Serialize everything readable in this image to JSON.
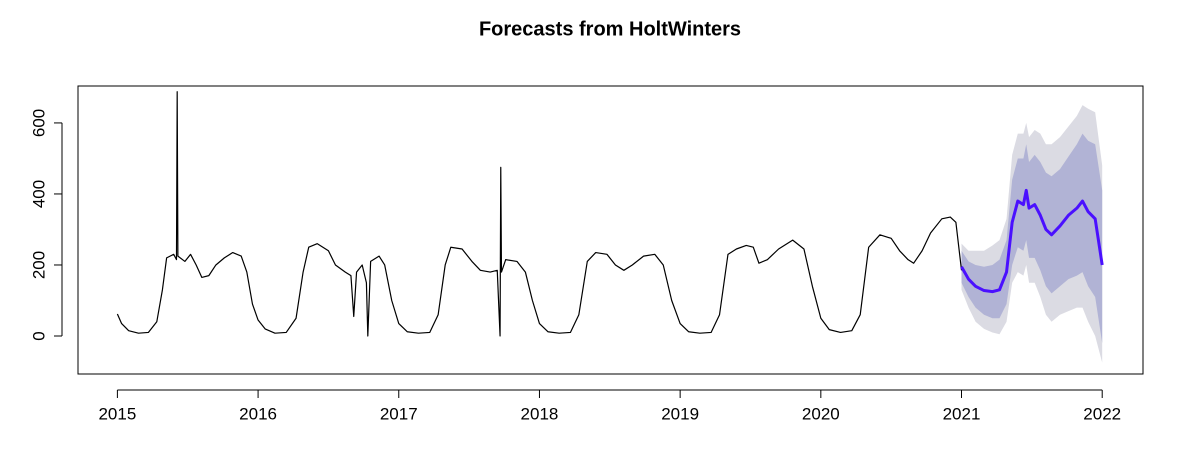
{
  "chart_data": {
    "type": "line",
    "title": "Forecasts from HoltWinters",
    "xlim": [
      2014.72,
      2022.29
    ],
    "ylim": [
      -107,
      704
    ],
    "xticks": [
      2015,
      2016,
      2017,
      2018,
      2019,
      2020,
      2021,
      2022
    ],
    "yticks": [
      0,
      200,
      400,
      600
    ],
    "bands": [
      {
        "color": "#dbdbe3",
        "x": [
          2021.0,
          2021.05,
          2021.1,
          2021.16,
          2021.22,
          2021.27,
          2021.32,
          2021.36,
          2021.4,
          2021.44,
          2021.46,
          2021.48,
          2021.52,
          2021.56,
          2021.6,
          2021.64,
          2021.7,
          2021.76,
          2021.82,
          2021.86,
          2021.9,
          2021.95,
          2022.0
        ],
        "lower": [
          130,
          80,
          40,
          20,
          10,
          5,
          40,
          150,
          180,
          170,
          200,
          150,
          150,
          110,
          60,
          40,
          60,
          70,
          80,
          80,
          40,
          0,
          -75
        ],
        "upper": [
          260,
          240,
          240,
          240,
          255,
          270,
          330,
          510,
          570,
          570,
          600,
          560,
          580,
          570,
          540,
          540,
          560,
          590,
          620,
          650,
          640,
          630,
          480
        ]
      },
      {
        "color": "#b1b3d5",
        "x": [
          2021.0,
          2021.05,
          2021.1,
          2021.16,
          2021.22,
          2021.27,
          2021.32,
          2021.36,
          2021.4,
          2021.44,
          2021.46,
          2021.48,
          2021.52,
          2021.56,
          2021.6,
          2021.64,
          2021.7,
          2021.76,
          2021.82,
          2021.86,
          2021.9,
          2021.95,
          2022.0
        ],
        "lower": [
          150,
          110,
          80,
          60,
          50,
          50,
          90,
          200,
          250,
          240,
          270,
          220,
          220,
          185,
          140,
          120,
          140,
          160,
          170,
          180,
          140,
          110,
          -20
        ],
        "upper": [
          240,
          210,
          200,
          195,
          200,
          215,
          270,
          440,
          500,
          500,
          540,
          490,
          510,
          490,
          460,
          450,
          470,
          505,
          540,
          570,
          550,
          540,
          410
        ]
      }
    ],
    "series": [
      {
        "color": "#000000",
        "x": [
          2015.0,
          2015.03,
          2015.08,
          2015.15,
          2015.22,
          2015.28,
          2015.32,
          2015.35,
          2015.4,
          2015.42,
          2015.425,
          2015.43,
          2015.48,
          2015.52,
          2015.56,
          2015.6,
          2015.65,
          2015.7,
          2015.76,
          2015.82,
          2015.88,
          2015.92,
          2015.96,
          2016.0,
          2016.05,
          2016.12,
          2016.2,
          2016.27,
          2016.32,
          2016.36,
          2016.42,
          2016.5,
          2016.55,
          2016.62,
          2016.66,
          2016.68,
          2016.7,
          2016.74,
          2016.77,
          2016.78,
          2016.8,
          2016.86,
          2016.9,
          2016.95,
          2017.0,
          2017.06,
          2017.14,
          2017.22,
          2017.28,
          2017.33,
          2017.37,
          2017.45,
          2017.52,
          2017.58,
          2017.65,
          2017.7,
          2017.72,
          2017.725,
          2017.73,
          2017.76,
          2017.84,
          2017.9,
          2017.95,
          2018.0,
          2018.06,
          2018.14,
          2018.22,
          2018.28,
          2018.34,
          2018.4,
          2018.48,
          2018.54,
          2018.6,
          2018.66,
          2018.74,
          2018.82,
          2018.88,
          2018.94,
          2019.0,
          2019.06,
          2019.14,
          2019.22,
          2019.28,
          2019.34,
          2019.4,
          2019.47,
          2019.52,
          2019.56,
          2019.62,
          2019.7,
          2019.8,
          2019.88,
          2019.94,
          2020.0,
          2020.06,
          2020.14,
          2020.22,
          2020.28,
          2020.34,
          2020.42,
          2020.5,
          2020.56,
          2020.62,
          2020.66,
          2020.72,
          2020.78,
          2020.86,
          2020.92,
          2020.96,
          2021.0
        ],
        "values": [
          62,
          35,
          15,
          8,
          10,
          40,
          130,
          220,
          230,
          215,
          688,
          225,
          210,
          230,
          200,
          165,
          170,
          200,
          220,
          235,
          225,
          180,
          90,
          45,
          20,
          8,
          10,
          50,
          180,
          250,
          260,
          240,
          200,
          180,
          170,
          55,
          180,
          200,
          150,
          0,
          210,
          225,
          200,
          100,
          35,
          12,
          8,
          10,
          60,
          200,
          250,
          245,
          210,
          185,
          180,
          185,
          0,
          475,
          180,
          215,
          210,
          180,
          100,
          35,
          12,
          8,
          10,
          60,
          210,
          235,
          230,
          200,
          185,
          200,
          225,
          230,
          200,
          100,
          35,
          12,
          8,
          10,
          60,
          230,
          245,
          255,
          250,
          205,
          215,
          245,
          270,
          245,
          140,
          50,
          18,
          10,
          15,
          60,
          250,
          285,
          275,
          240,
          215,
          205,
          240,
          290,
          330,
          335,
          320,
          185
        ]
      },
      {
        "color": "#4a10ff",
        "x": [
          2021.0,
          2021.05,
          2021.1,
          2021.16,
          2021.22,
          2021.27,
          2021.32,
          2021.36,
          2021.4,
          2021.44,
          2021.46,
          2021.48,
          2021.52,
          2021.56,
          2021.6,
          2021.64,
          2021.7,
          2021.76,
          2021.82,
          2021.86,
          2021.9,
          2021.95,
          2022.0
        ],
        "values": [
          195,
          160,
          140,
          128,
          125,
          130,
          180,
          320,
          380,
          370,
          410,
          360,
          370,
          340,
          300,
          285,
          310,
          340,
          360,
          380,
          350,
          330,
          200
        ]
      }
    ]
  }
}
